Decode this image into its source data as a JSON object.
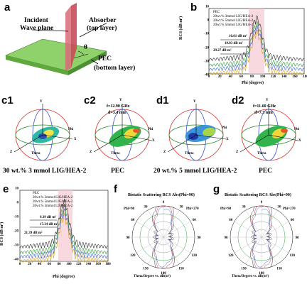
{
  "panels": {
    "a": {
      "letter": "a",
      "labels": {
        "incident": "Incident",
        "wave_plane": "Wave plane",
        "absorber": "Absorber",
        "absorber_sub": "(top layer)",
        "pec": "PEC",
        "pec_sub": "(bottom layer)",
        "theta": "θ"
      }
    },
    "b": {
      "letter": "b",
      "ylabel": "RCS (dB m²)",
      "xlabel": "Phi (degree)",
      "xticks": [
        "0",
        "20",
        "40",
        "60",
        "80",
        "100",
        "120",
        "140",
        "160",
        "180"
      ],
      "yticks": [
        "10",
        "0",
        "-10",
        "-20",
        "-30",
        "-40"
      ],
      "legend": [
        "PEC",
        "20wt.% 3mmol LIG/HEA-2",
        "20wt.% 5mmol LIG/HEA-2",
        "20wt.% 5mmol LIG/HEA-2"
      ],
      "annotations": [
        "10.61 dB m²",
        "19.03 dB m²",
        "29.27 dB m²"
      ]
    },
    "c1": {
      "letter": "c1",
      "caption": "30 wt.% 3 mmol LIG/HEA-2",
      "axis": {
        "y": "Y",
        "x": "X",
        "z": "Z",
        "theta": "Theta",
        "phi": "Phi"
      }
    },
    "c2": {
      "letter": "c2",
      "caption": "PEC",
      "freq": "f=12.90 GHz",
      "thick": "d=3.4 mm",
      "axis": {
        "y": "Y",
        "x": "X",
        "z": "Z",
        "theta": "Theta",
        "phi": "Phi"
      }
    },
    "d1": {
      "letter": "d1",
      "caption": "20 wt.% 5 mmol LIG/HEA-2",
      "axis": {
        "y": "Y",
        "x": "X",
        "z": "Z",
        "theta": "Theta",
        "phi": "Phi"
      }
    },
    "d2": {
      "letter": "d2",
      "caption": "PEC",
      "freq": "f=11.60 GHz",
      "thick": "d=7.3 mm",
      "axis": {
        "y": "Y",
        "x": "X",
        "z": "Z",
        "theta": "Theta",
        "phi": "Phi"
      }
    },
    "e": {
      "letter": "e",
      "ylabel": "RCS (dB m²)",
      "xlabel": "Phi (degree)",
      "xticks": [
        "0",
        "20",
        "40",
        "60",
        "80",
        "100",
        "120",
        "140",
        "160",
        "180"
      ],
      "yticks": [
        "10",
        "0",
        "-10",
        "-20",
        "-30",
        "-40"
      ],
      "legend": [
        "PEC",
        "20wt.% 3mmol LIG/HEA-2",
        "20wt.% 5mmol LIG/HEA-2",
        "20wt.% 5mmol LIG/HEA-2"
      ],
      "annotations": [
        "9.39 dB m²",
        "17.34 dB m²",
        "21.39 dB m²"
      ]
    },
    "f": {
      "letter": "f",
      "title": "Bistatic Scattering RCS Abs(Phi=90)",
      "left_label": "Phi=90",
      "right_label": "Phi=270",
      "footer": "Theta/Degree vs. dB(m²)",
      "angles": [
        "0",
        "30",
        "60",
        "90",
        "120",
        "150",
        "180",
        "150",
        "120",
        "90",
        "60",
        "30"
      ]
    },
    "g": {
      "letter": "g",
      "title": "Bistatic Scattering RCS Abs(Phi=90)",
      "left_label": "Phi=90",
      "right_label": "Phi=270",
      "footer": "Theta/Degree vs. dB(m²)",
      "angles": [
        "0",
        "30",
        "60",
        "90",
        "120",
        "150",
        "180",
        "150",
        "120",
        "90",
        "60",
        "30"
      ]
    }
  },
  "colors": {
    "pec": "#2a2a2a",
    "green": "#2f9a3a",
    "blue": "#3a5fc8",
    "pink_bg": "#f6c9d3",
    "plate_green": "#6fbf4e",
    "plate_top": "#8fd16a",
    "plane_red": "#c64b5a"
  }
}
